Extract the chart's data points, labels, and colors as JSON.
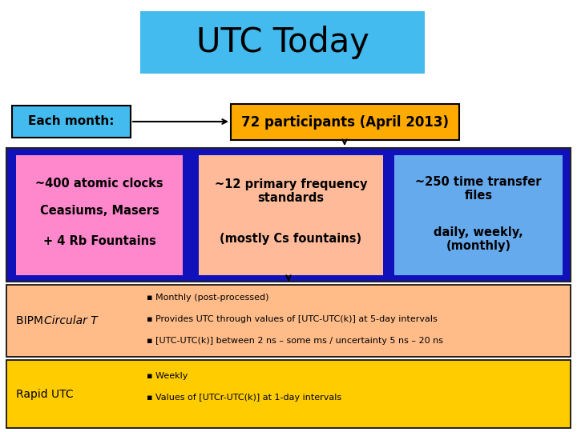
{
  "title": "UTC Today",
  "title_bg": "#44BBEE",
  "each_month_text": "Each month:",
  "each_month_bg": "#44BBEE",
  "participants_text": "72 participants (April 2013)",
  "participants_bg": "#FFAA00",
  "blue_box_bg": "#1111BB",
  "box1_bg": "#FF88CC",
  "box1_lines": [
    "~400 atomic clocks",
    "Ceasiums, Masers",
    "+ 4 Rb Fountains"
  ],
  "box2_bg": "#FFBB99",
  "box2_lines": [
    "~12 primary frequency\nstandards",
    "(mostly Cs fountains)"
  ],
  "box3_bg": "#66AAEE",
  "box3_lines": [
    "~250 time transfer\nfiles",
    "daily, weekly,\n(monthly)"
  ],
  "bipm_bg": "#FFBB88",
  "bipm_label_normal": "BIPM ",
  "bipm_label_italic": "Circular T",
  "bipm_bullets": [
    "Monthly (post-processed)",
    "Provides UTC through values of [UTC-UTC(k)] at 5-day intervals",
    "[UTC-UTC(k)] between 2 ns – some ms / uncertainty 5 ns – 20 ns"
  ],
  "rapid_bg": "#FFCC00",
  "rapid_label": "Rapid UTC",
  "rapid_bullets": [
    "Weekly",
    "Values of [UTCr-UTC(k)] at 1-day intervals"
  ],
  "background": "#FFFFFF"
}
